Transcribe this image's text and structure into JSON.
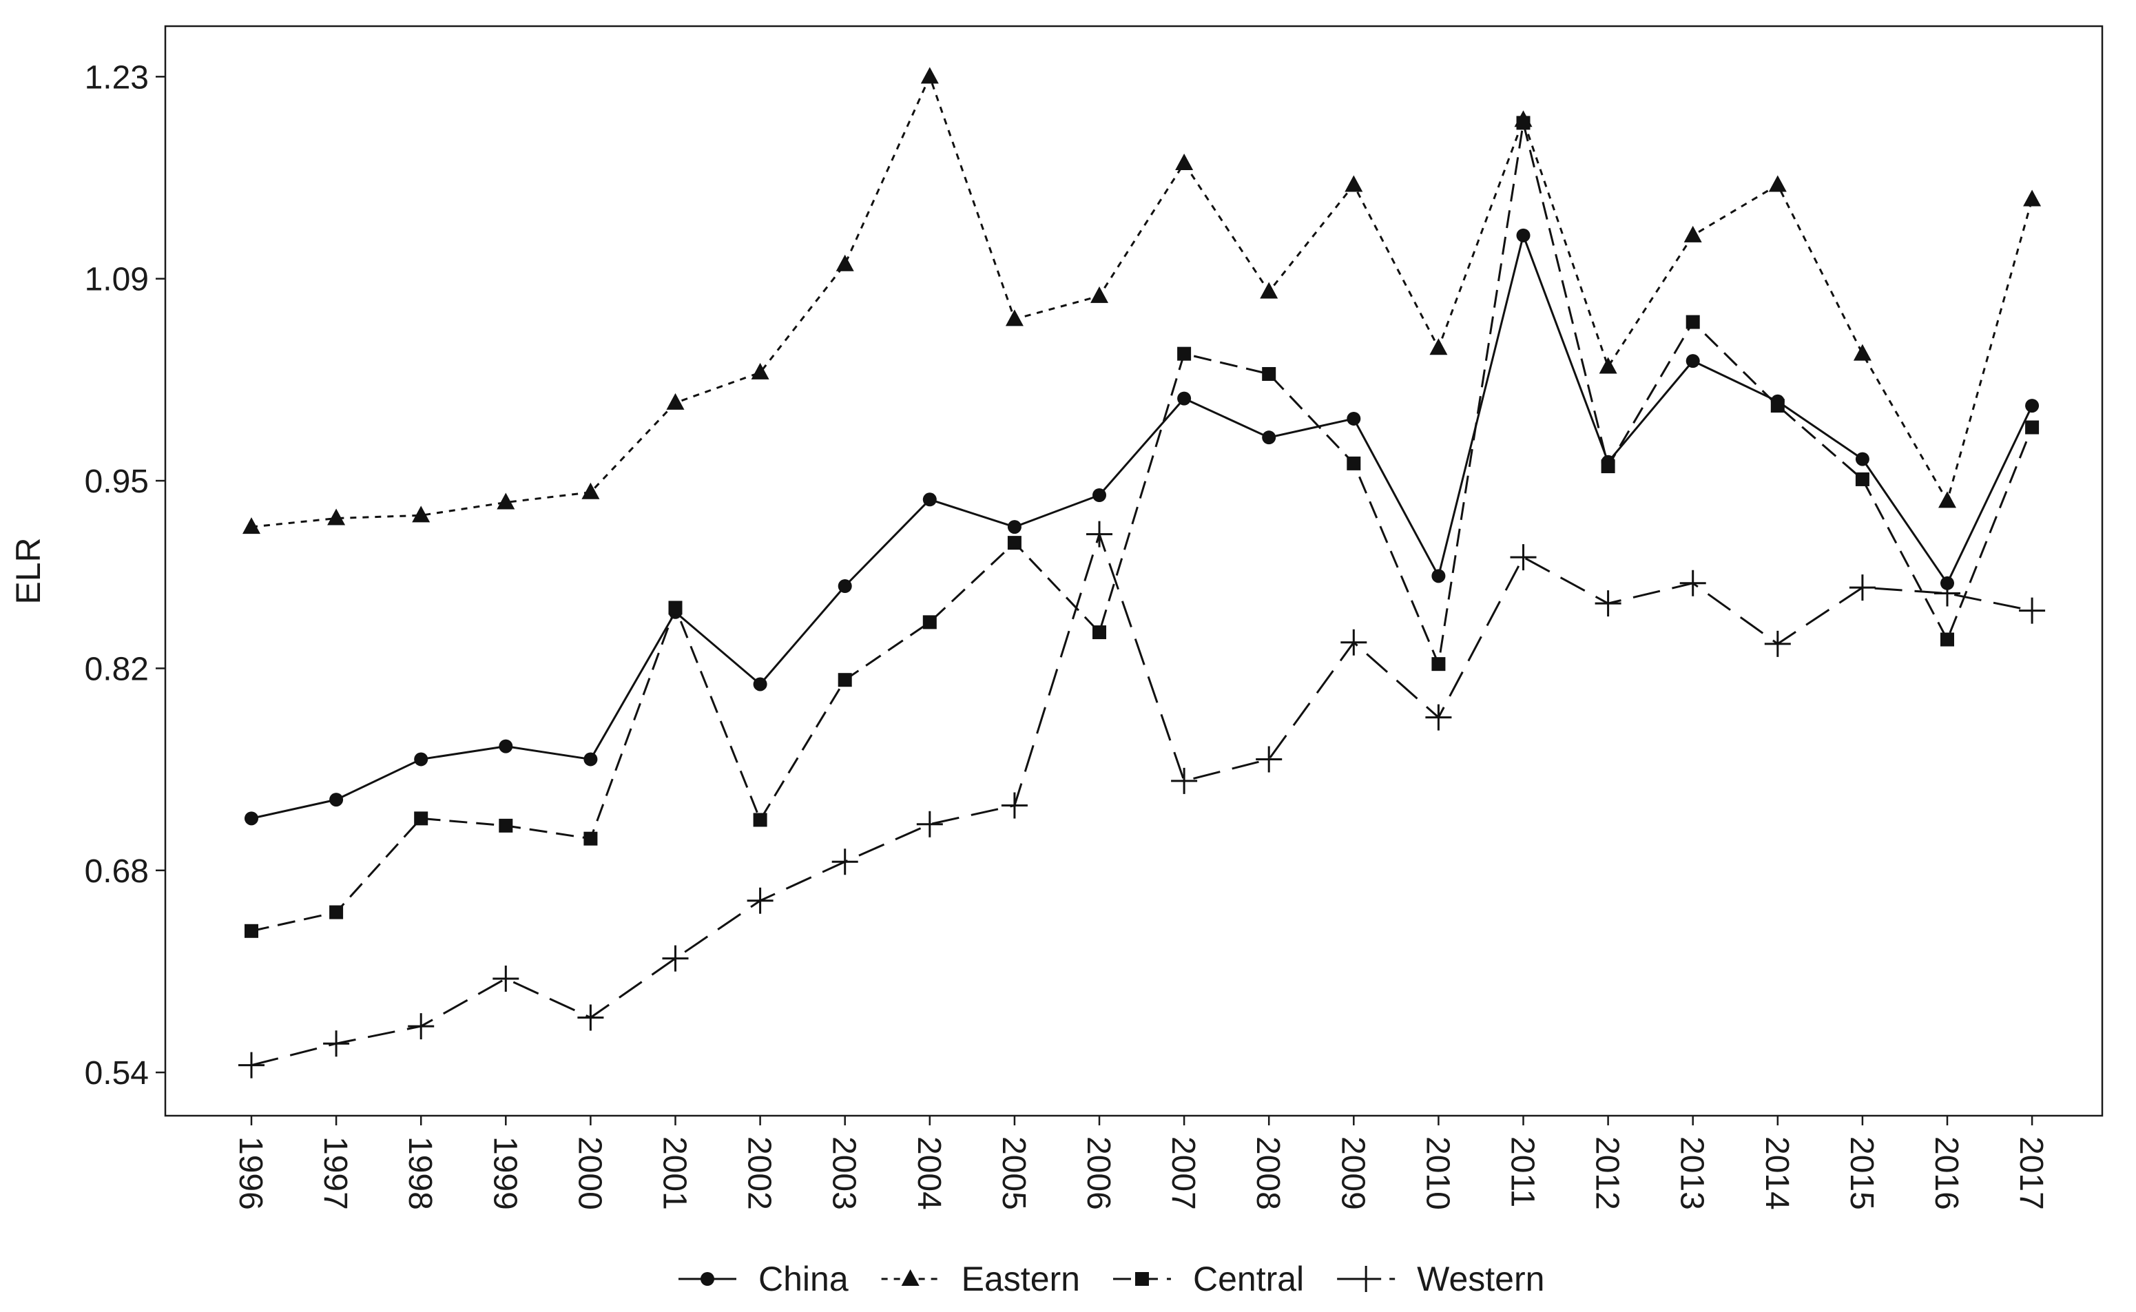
{
  "chart_data": {
    "type": "line",
    "title": "",
    "xlabel": "",
    "ylabel": "ELR",
    "categories": [
      "1996",
      "1997",
      "1998",
      "1999",
      "2000",
      "2001",
      "2002",
      "2003",
      "2004",
      "2005",
      "2006",
      "2007",
      "2008",
      "2009",
      "2010",
      "2011",
      "2012",
      "2013",
      "2014",
      "2015",
      "2016",
      "2017"
    ],
    "yticks": [
      0.54,
      0.68,
      0.82,
      0.95,
      1.09,
      1.23
    ],
    "ylim": [
      0.51,
      1.265
    ],
    "grid": false,
    "legend_position": "bottom",
    "series": [
      {
        "name": "China",
        "marker": "circle",
        "dash": "solid",
        "values": [
          0.716,
          0.729,
          0.757,
          0.766,
          0.757,
          0.859,
          0.809,
          0.877,
          0.937,
          0.918,
          0.94,
          1.007,
          0.98,
          0.993,
          0.884,
          1.12,
          0.963,
          1.033,
          1.005,
          0.965,
          0.879,
          1.002
        ]
      },
      {
        "name": "Eastern",
        "marker": "triangle",
        "dash": "dotted",
        "values": [
          0.918,
          0.924,
          0.926,
          0.935,
          0.942,
          1.004,
          1.025,
          1.1,
          1.23,
          1.062,
          1.078,
          1.17,
          1.081,
          1.155,
          1.042,
          1.2,
          1.029,
          1.12,
          1.155,
          1.038,
          0.936,
          1.145
        ]
      },
      {
        "name": "Central",
        "marker": "square",
        "dash": "dashed",
        "values": [
          0.638,
          0.651,
          0.716,
          0.711,
          0.702,
          0.862,
          0.715,
          0.812,
          0.852,
          0.907,
          0.845,
          1.038,
          1.024,
          0.962,
          0.823,
          1.198,
          0.96,
          1.06,
          1.002,
          0.951,
          0.84,
          0.987
        ]
      },
      {
        "name": "Western",
        "marker": "plus",
        "dash": "longdash",
        "values": [
          0.545,
          0.56,
          0.572,
          0.605,
          0.578,
          0.619,
          0.659,
          0.686,
          0.712,
          0.725,
          0.913,
          0.742,
          0.757,
          0.838,
          0.786,
          0.897,
          0.865,
          0.879,
          0.837,
          0.876,
          0.872,
          0.86
        ]
      }
    ]
  }
}
